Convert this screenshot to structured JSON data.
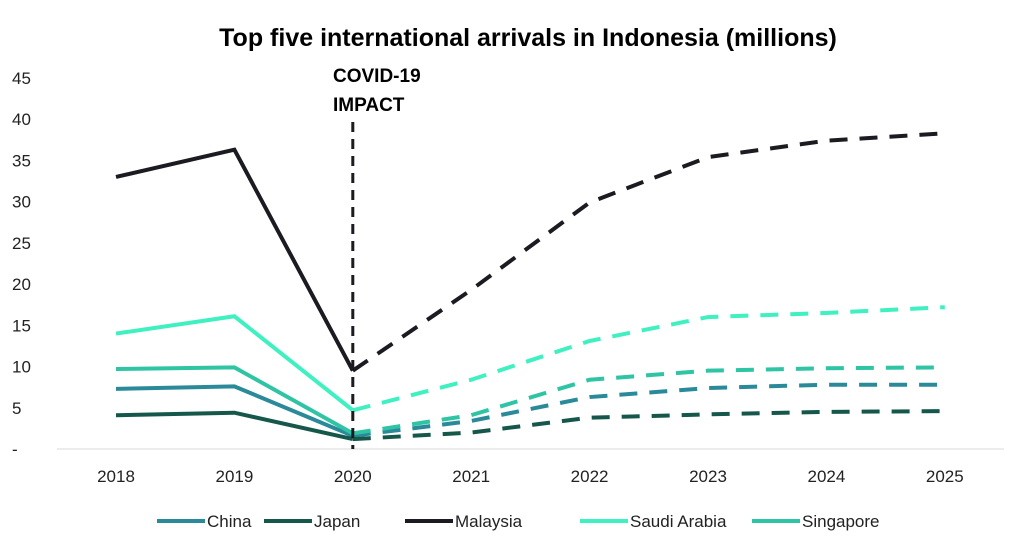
{
  "chart_data": {
    "type": "line",
    "title": "Top five international arrivals in Indonesia (millions)",
    "xlabel": "",
    "ylabel": "",
    "categories": [
      "2018",
      "2019",
      "2020",
      "2021",
      "2022",
      "2023",
      "2024",
      "2025"
    ],
    "y_ticks": [
      "-",
      "5",
      "10",
      "15",
      "20",
      "25",
      "30",
      "35",
      "40",
      "45"
    ],
    "ylim": [
      0,
      45
    ],
    "grid": false,
    "legend_placement": "bottom",
    "annotation": {
      "line1": "COVID-19",
      "line2": "IMPACT",
      "at": "2020"
    },
    "forecast_from": "2020",
    "series": [
      {
        "name": "China",
        "color": "#2a8a9a",
        "values": [
          7.3,
          7.6,
          1.6,
          3.4,
          6.3,
          7.4,
          7.8,
          7.8
        ]
      },
      {
        "name": "Japan",
        "color": "#15574a",
        "values": [
          4.1,
          4.4,
          1.2,
          2.0,
          3.8,
          4.2,
          4.5,
          4.6
        ]
      },
      {
        "name": "Malaysia",
        "color": "#1c1b22",
        "values": [
          33.0,
          36.3,
          9.5,
          19.3,
          29.9,
          35.4,
          37.4,
          38.3
        ]
      },
      {
        "name": "Saudi Arabia",
        "color": "#3ff0c0",
        "values": [
          14.0,
          16.1,
          4.7,
          8.4,
          13.1,
          16.0,
          16.5,
          17.2
        ]
      },
      {
        "name": "Singapore",
        "color": "#2fc4a4",
        "values": [
          9.7,
          9.9,
          1.9,
          4.1,
          8.4,
          9.5,
          9.8,
          9.9
        ]
      }
    ]
  }
}
